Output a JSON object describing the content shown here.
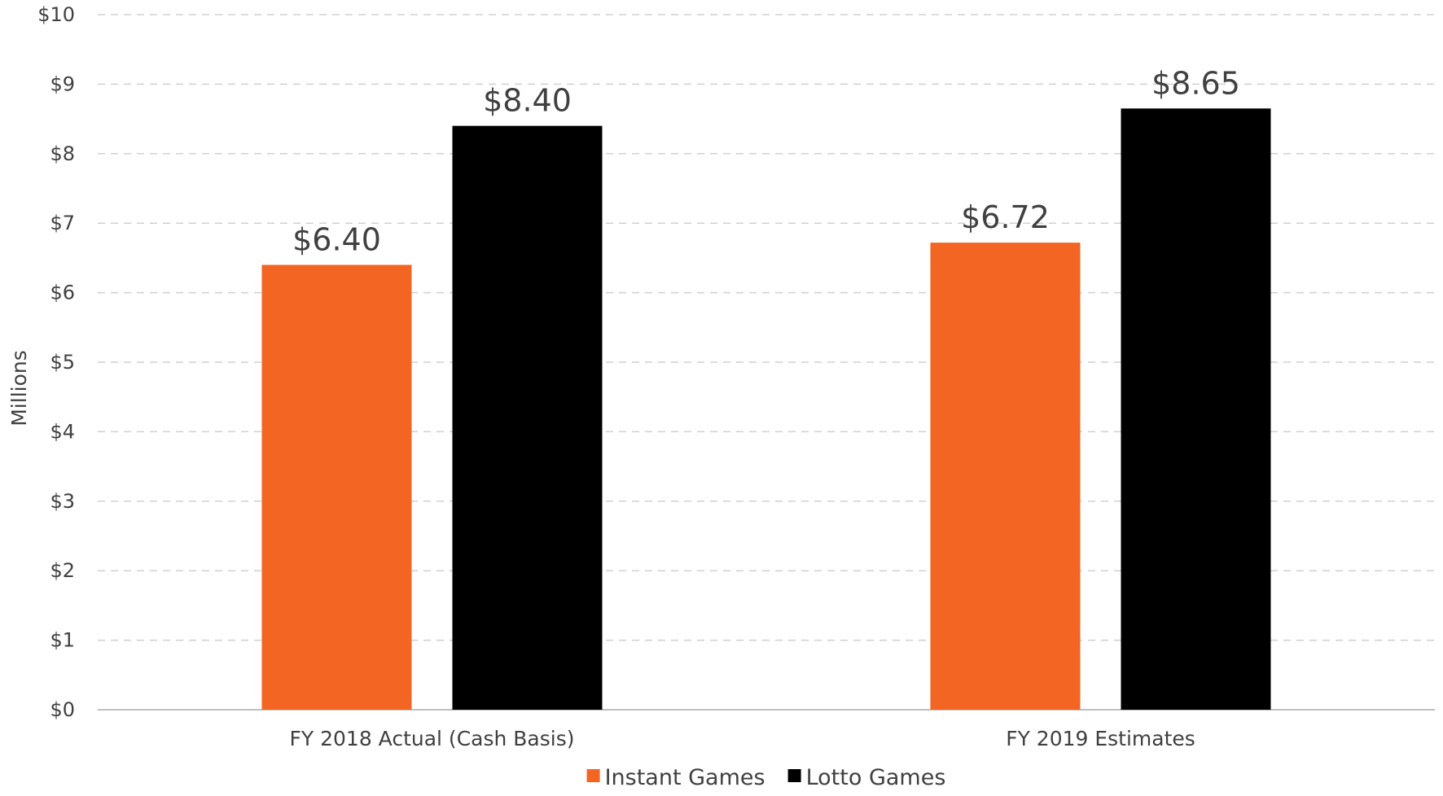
{
  "chart_data": {
    "type": "bar",
    "categories": [
      "FY 2018 Actual (Cash Basis)",
      "FY 2019 Estimates"
    ],
    "series": [
      {
        "name": "Instant Games",
        "values": [
          6.4,
          6.72
        ],
        "labels": [
          "$6.40",
          "$6.72"
        ],
        "color": "#F26522"
      },
      {
        "name": "Lotto Games",
        "values": [
          8.4,
          8.65
        ],
        "labels": [
          "$8.40",
          "$8.65"
        ],
        "color": "#000000"
      }
    ],
    "ylabel": "Millions",
    "ylim": [
      0,
      10
    ],
    "yticks": [
      0,
      1,
      2,
      3,
      4,
      5,
      6,
      7,
      8,
      9,
      10
    ],
    "ytick_labels": [
      "$0",
      "$1",
      "$2",
      "$3",
      "$4",
      "$5",
      "$6",
      "$7",
      "$8",
      "$9",
      "$10"
    ],
    "grid": true,
    "legend_position": "bottom"
  }
}
